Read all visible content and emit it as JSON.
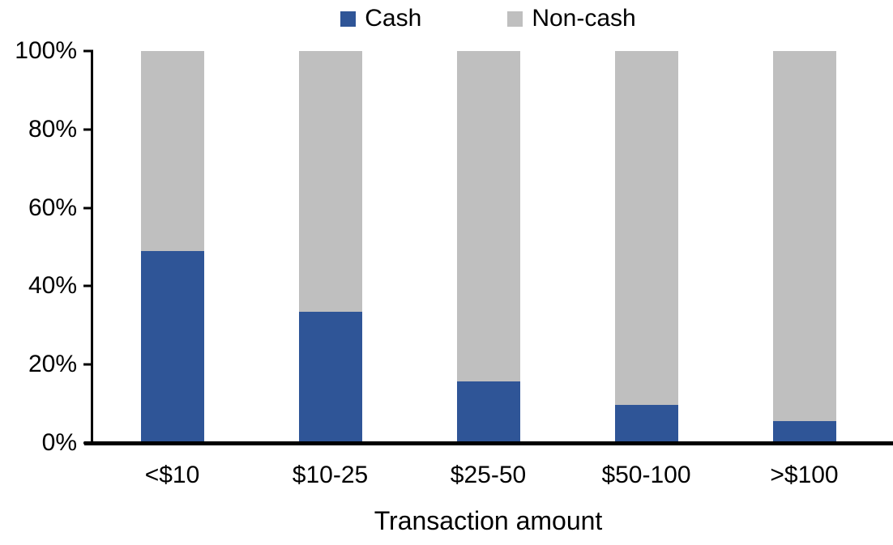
{
  "chart_data": {
    "type": "bar",
    "stacked": true,
    "percent_stacked": true,
    "title": "",
    "xlabel": "Transaction amount",
    "ylabel": "",
    "categories": [
      "<$10",
      "$10-25",
      "$25-50",
      "$50-100",
      ">$100"
    ],
    "series": [
      {
        "name": "Cash",
        "color": "#2F5597",
        "values": [
          49,
          33.5,
          15.8,
          9.7,
          5.6
        ]
      },
      {
        "name": "Non-cash",
        "color": "#BFBFBF",
        "values": [
          51,
          66.5,
          84.2,
          90.3,
          94.4
        ]
      }
    ],
    "ylim": [
      0,
      100
    ],
    "yticks": [
      0,
      20,
      40,
      60,
      80,
      100
    ],
    "ytick_suffix": "%",
    "grid": false,
    "legend_position": "top-center",
    "axis_color": "#000000",
    "background_color": "#FFFFFF"
  }
}
